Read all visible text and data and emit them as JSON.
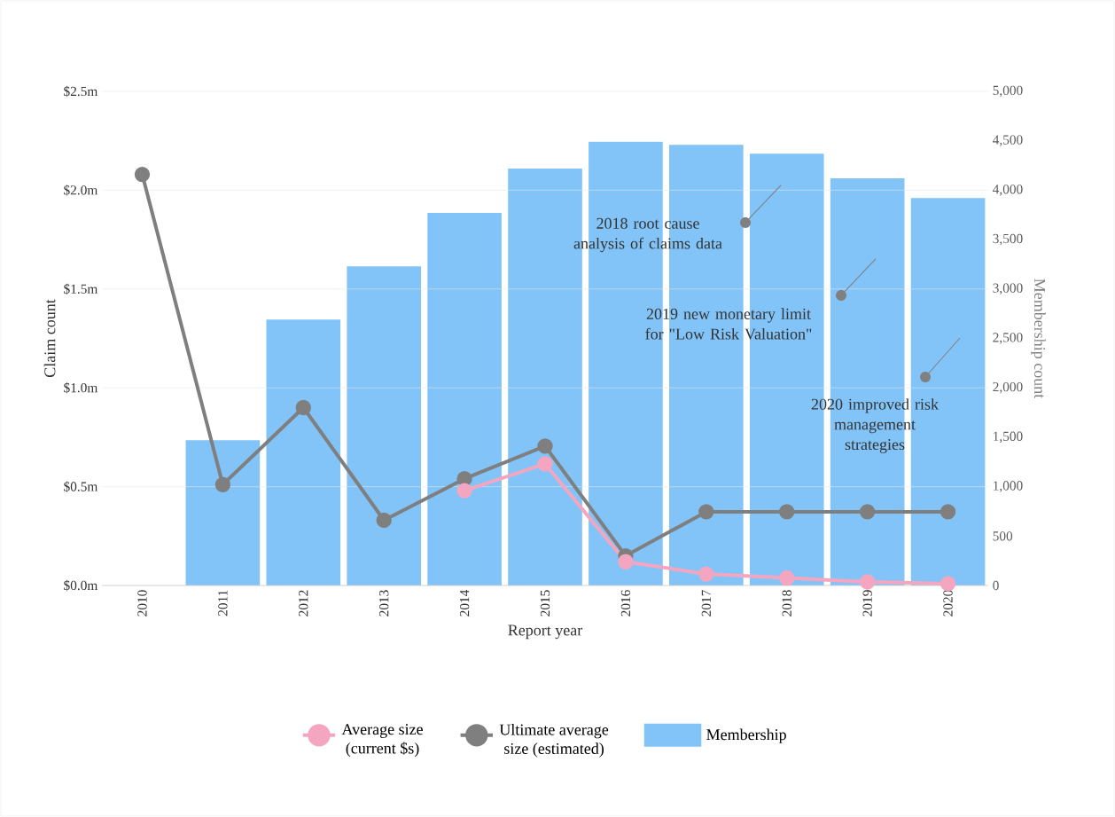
{
  "chart_data": {
    "type": "bar",
    "categories": [
      "2010",
      "2011",
      "2012",
      "2013",
      "2014",
      "2015",
      "2016",
      "2017",
      "2018",
      "2019",
      "2020"
    ],
    "series": [
      {
        "name": "Average size (current $s)",
        "type": "line",
        "axis": "y",
        "color": "#f4a6c0",
        "marker": "circle",
        "values": [
          null,
          null,
          null,
          null,
          0.48,
          0.615,
          0.12,
          0.058,
          0.038,
          0.018,
          0.009
        ]
      },
      {
        "name": "Ultimate average size (estimated)",
        "type": "line",
        "axis": "y",
        "color": "#7f7f7f",
        "marker": "circle",
        "values": [
          2.08,
          0.51,
          0.9,
          0.33,
          0.54,
          0.705,
          0.15,
          0.373,
          0.373,
          0.373,
          0.373
        ]
      },
      {
        "name": "Membership",
        "axis": "y2",
        "color": "#82c4f8",
        "values": [
          null,
          1470,
          2690,
          3230,
          3770,
          4220,
          4490,
          4460,
          4370,
          4120,
          3920
        ]
      }
    ],
    "xlabel": "Report year",
    "ylabel": "Claim count",
    "y2label": "Membership count",
    "ylim": [
      0,
      2.5
    ],
    "yticks": [
      {
        "value": 0,
        "label": "$0.0m"
      },
      {
        "value": 0.5,
        "label": "$0.5m"
      },
      {
        "value": 1,
        "label": "$1.0m"
      },
      {
        "value": 1.5,
        "label": "$1.5m"
      },
      {
        "value": 2,
        "label": "$2.0m"
      },
      {
        "value": 2.5,
        "label": "$2.5m"
      }
    ],
    "y2lim": [
      0,
      5000
    ],
    "y2ticks": [
      0,
      500,
      {
        "value": 1000,
        "label": "1,000"
      },
      {
        "value": 1500,
        "label": "1,500"
      },
      {
        "value": 2000,
        "label": "2,000"
      },
      {
        "value": 2500,
        "label": "2,500"
      },
      {
        "value": 3000,
        "label": "3,000"
      },
      {
        "value": 3500,
        "label": "3,500"
      },
      {
        "value": 4000,
        "label": "4,000"
      },
      {
        "value": 4500,
        "label": "4,500"
      },
      {
        "value": 5000,
        "label": "5,000"
      }
    ],
    "grid": "y",
    "legend": "bottom",
    "annotations": [
      "2018 root cause analysis of claims data",
      "2019 new monetary limit for \"Low Risk Valuation\"",
      "2020 improved risk management strategies"
    ]
  }
}
